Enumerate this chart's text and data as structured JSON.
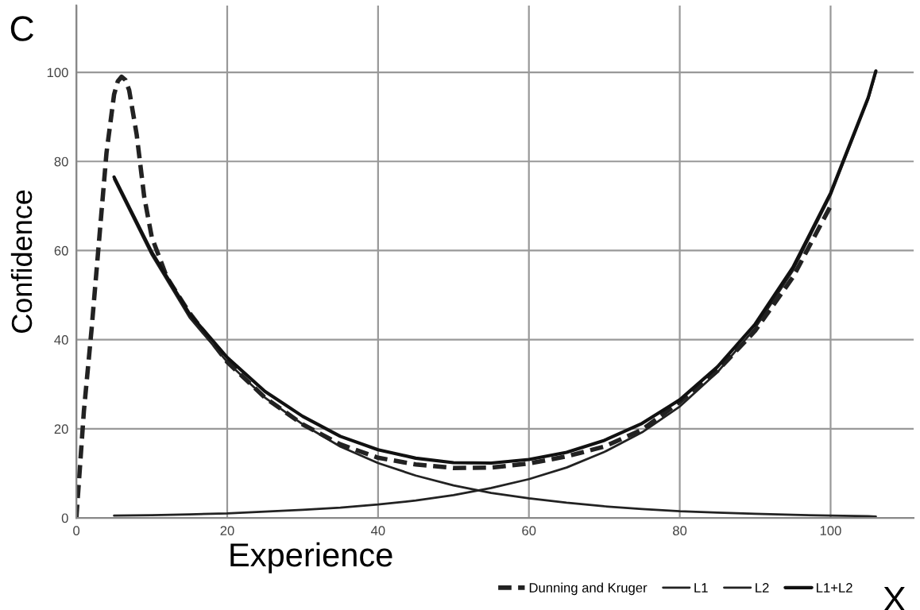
{
  "chart_data": {
    "type": "line",
    "xlabel": "Experience",
    "ylabel": "Confidence",
    "annotations": [
      "C",
      "X"
    ],
    "xlim": [
      0,
      111
    ],
    "ylim": [
      0,
      115
    ],
    "xticks": [
      0,
      20,
      40,
      60,
      80,
      100
    ],
    "yticks": [
      0,
      20,
      40,
      60,
      80,
      100
    ],
    "grid": true,
    "legend": "bottom right",
    "marker": "none",
    "series": [
      {
        "name": "Dunning and Kruger",
        "color": "#222222",
        "line_style": "dashed",
        "x": [
          0,
          1,
          2,
          3,
          4,
          5,
          5.5,
          6,
          6.5,
          7,
          8,
          9,
          10,
          12,
          15,
          20,
          25,
          30,
          35,
          40,
          45,
          50,
          55,
          60,
          65,
          70,
          75,
          80,
          85,
          90,
          95,
          100
        ],
        "values": [
          0,
          24,
          42,
          62,
          82,
          95,
          98,
          99,
          98.3,
          96,
          86,
          72,
          63,
          54,
          46,
          35,
          27,
          21,
          16.5,
          13.5,
          12,
          11.2,
          11.3,
          12.2,
          13.8,
          16,
          19.8,
          26,
          33,
          42,
          54,
          70
        ]
      },
      {
        "name": "L1",
        "color": "#222222",
        "line_style": "solid",
        "x": [
          5,
          10,
          15,
          20,
          25,
          30,
          35,
          40,
          45,
          50,
          55,
          60,
          65,
          70,
          75,
          80,
          85,
          90,
          95,
          100,
          105,
          106
        ],
        "values": [
          76,
          59,
          45,
          35,
          27,
          21,
          16,
          12.3,
          9.5,
          7.3,
          5.6,
          4.4,
          3.4,
          2.6,
          2,
          1.5,
          1.2,
          0.9,
          0.7,
          0.5,
          0.4,
          0.3
        ]
      },
      {
        "name": "L2",
        "color": "#222222",
        "line_style": "solid",
        "x": [
          5,
          10,
          15,
          20,
          25,
          30,
          35,
          40,
          45,
          50,
          55,
          60,
          65,
          70,
          75,
          80,
          85,
          90,
          95,
          100,
          105,
          106
        ],
        "values": [
          0.5,
          0.6,
          0.8,
          1,
          1.4,
          1.8,
          2.3,
          3,
          3.9,
          5.1,
          6.7,
          8.7,
          11.3,
          14.8,
          19.2,
          25,
          32.7,
          42.6,
          55.5,
          72.4,
          94,
          100
        ]
      },
      {
        "name": "L1+L2",
        "color": "#111111",
        "line_style": "solid",
        "x": [
          5,
          10,
          15,
          20,
          25,
          30,
          35,
          40,
          45,
          50,
          55,
          60,
          65,
          70,
          75,
          80,
          85,
          90,
          95,
          100,
          105,
          106
        ],
        "values": [
          76.5,
          59.6,
          45.8,
          36,
          28.4,
          22.8,
          18.3,
          15.3,
          13.4,
          12.4,
          12.3,
          13.1,
          14.7,
          17.4,
          21.2,
          26.5,
          33.9,
          43.5,
          56.2,
          72.9,
          94.4,
          100.3
        ]
      }
    ]
  }
}
